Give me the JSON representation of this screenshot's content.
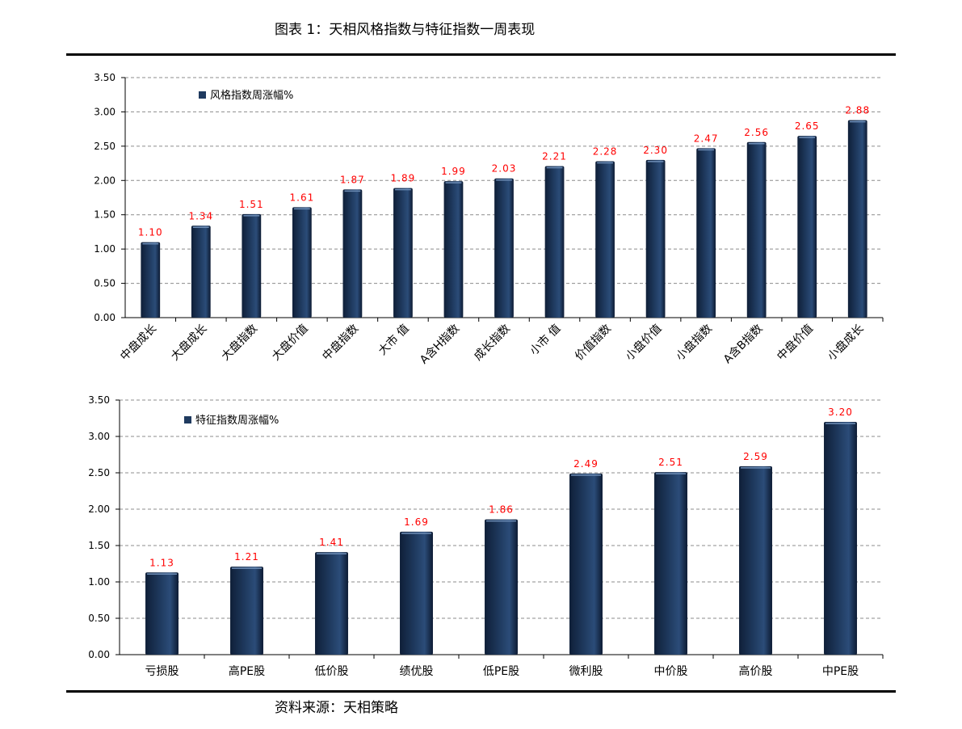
{
  "title": "图表 1：天相风格指数与特征指数一周表现",
  "source": "资料来源：天相策略",
  "colors": {
    "bar": "#1f3a5f",
    "label": "#ff0000",
    "grid": "#8c8c8c"
  },
  "chart_data": [
    {
      "type": "bar",
      "legend": "风格指数周涨幅%",
      "legend_position": "top-left",
      "categories": [
        "中盘成长",
        "大盘成长",
        "大盘指数",
        "大盘价值",
        "中盘指数",
        "大市 值",
        "A含H指数",
        "成长指数",
        "小市 值",
        "价值指数",
        "小盘价值",
        "小盘指数",
        "A含B指数",
        "中盘价值",
        "小盘成长"
      ],
      "values": [
        1.1,
        1.34,
        1.51,
        1.61,
        1.87,
        1.89,
        1.99,
        2.03,
        2.21,
        2.28,
        2.3,
        2.47,
        2.56,
        2.65,
        2.88
      ],
      "value_labels": [
        "1.10",
        "1.34",
        "1.51",
        "1.61",
        "1.87",
        "1.89",
        "1.99",
        "2.03",
        "2.21",
        "2.28",
        "2.30",
        "2.47",
        "2.56",
        "2.65",
        "2.88"
      ],
      "y_ticks": [
        "0.00",
        "0.50",
        "1.00",
        "1.50",
        "2.00",
        "2.50",
        "3.00",
        "3.50"
      ],
      "ylim": [
        0,
        3.5
      ],
      "grid": true,
      "x_label_rotation": -45
    },
    {
      "type": "bar",
      "legend": "特征指数周涨幅%",
      "legend_position": "top-left",
      "categories": [
        "亏损股",
        "高PE股",
        "低价股",
        "绩优股",
        "低PE股",
        "微利股",
        "中价股",
        "高价股",
        "中PE股"
      ],
      "values": [
        1.13,
        1.21,
        1.41,
        1.69,
        1.86,
        2.49,
        2.51,
        2.59,
        3.2
      ],
      "value_labels": [
        "1.13",
        "1.21",
        "1.41",
        "1.69",
        "1.86",
        "2.49",
        "2.51",
        "2.59",
        "3.20"
      ],
      "y_ticks": [
        "0.00",
        "0.50",
        "1.00",
        "1.50",
        "2.00",
        "2.50",
        "3.00",
        "3.50"
      ],
      "ylim": [
        0,
        3.5
      ],
      "grid": true,
      "x_label_rotation": 0
    }
  ]
}
